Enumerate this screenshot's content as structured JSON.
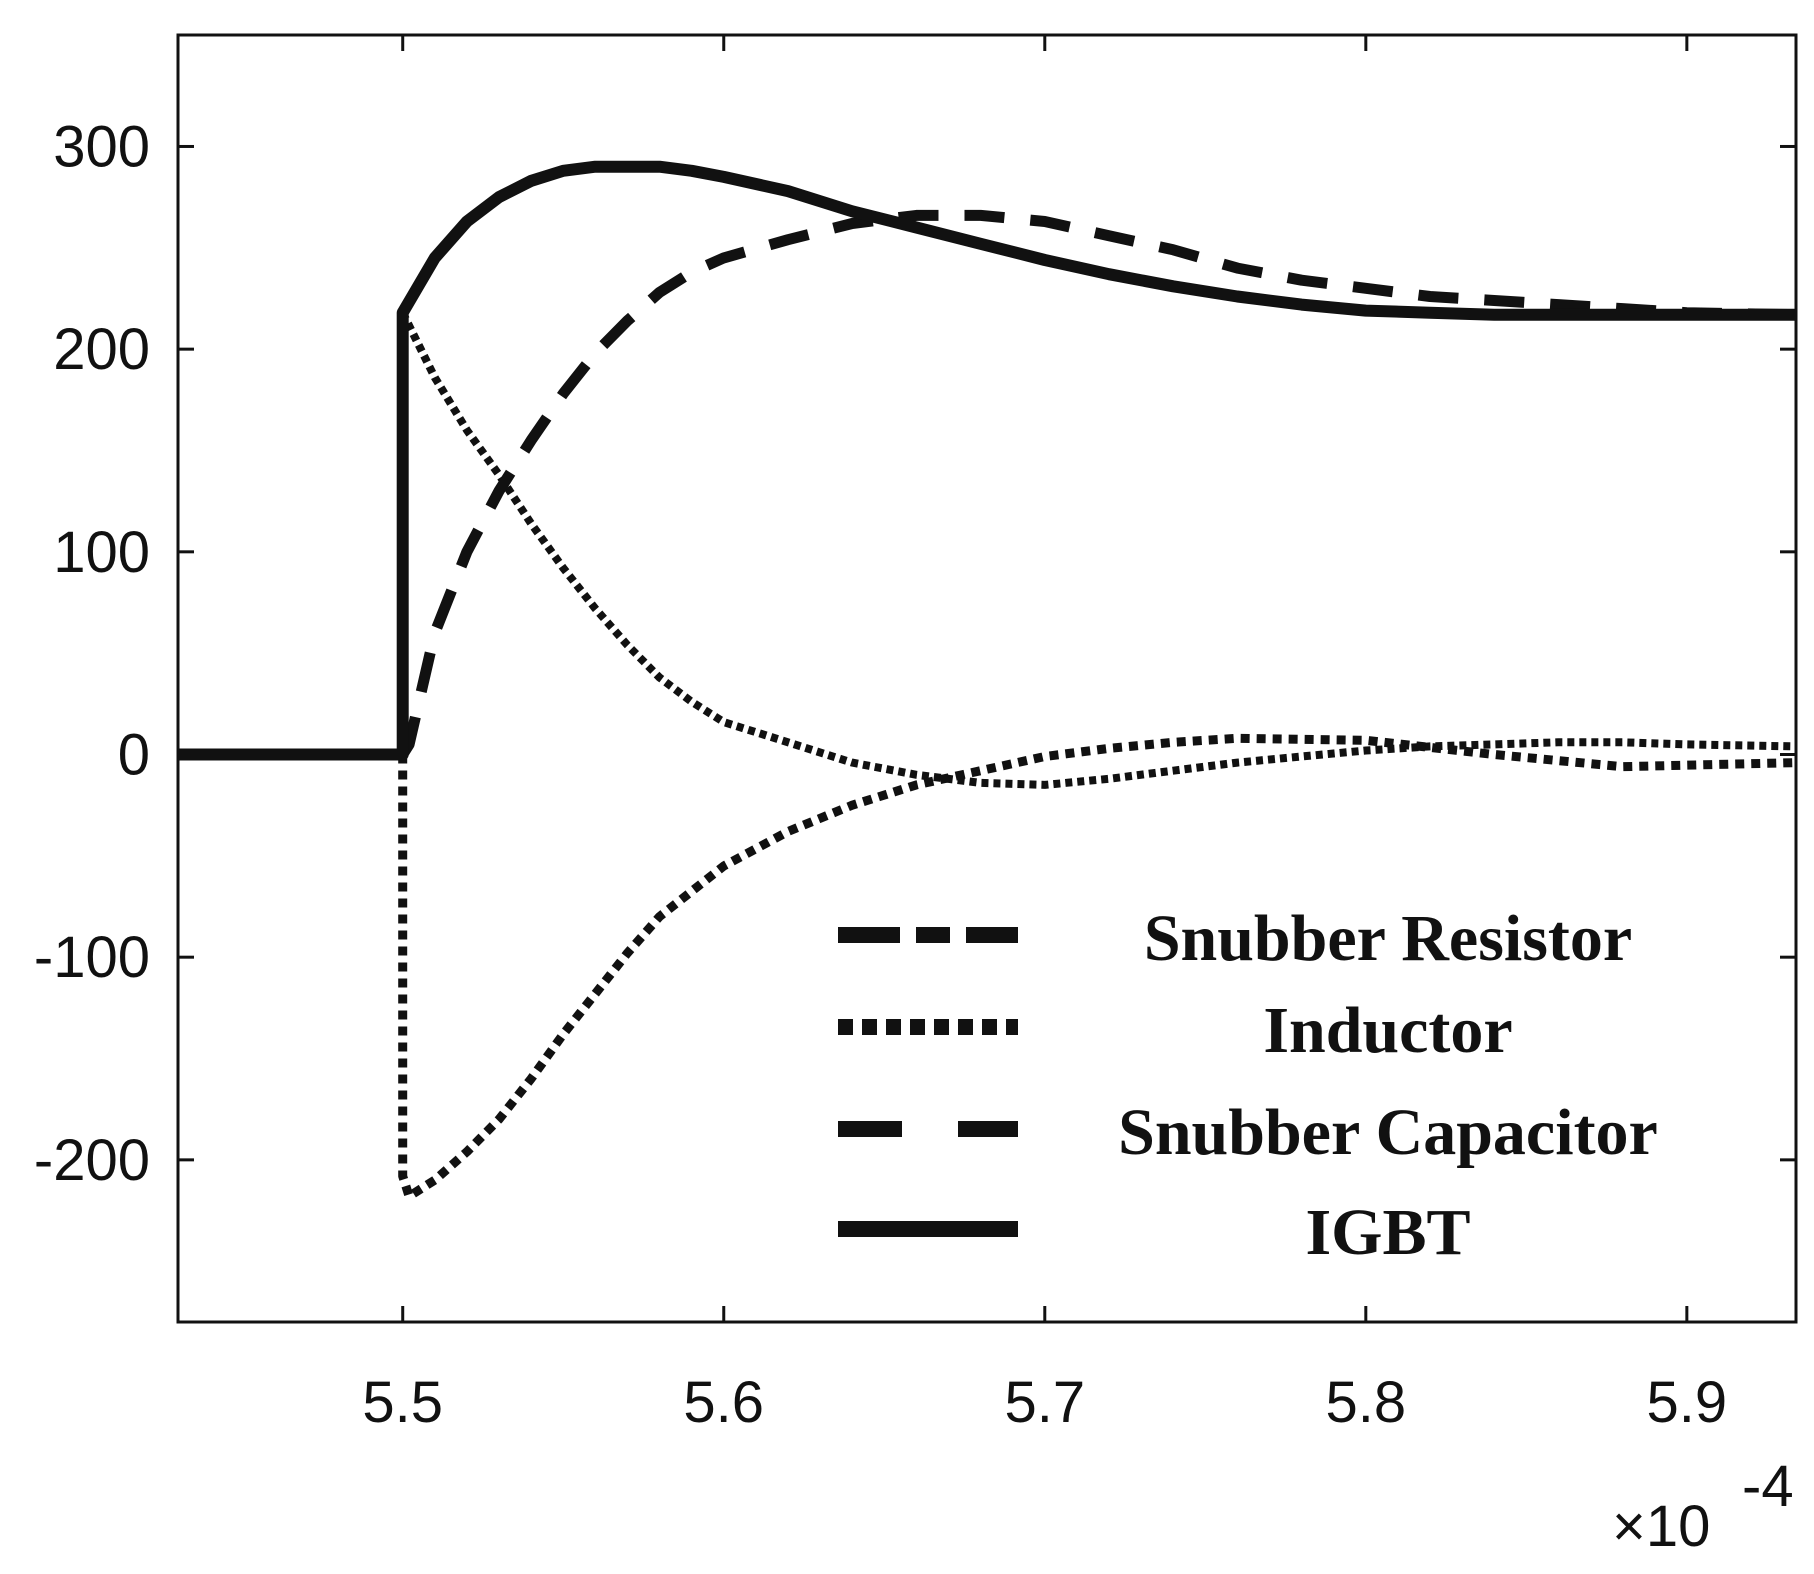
{
  "chart_data": {
    "type": "line",
    "title": "",
    "xlabel": "",
    "ylabel": "",
    "x_multiplier_label": "×10",
    "x_multiplier_exponent": "-4",
    "xlim": [
      5.43,
      5.934
    ],
    "ylim": [
      -280,
      355
    ],
    "xticks": [
      5.5,
      5.6,
      5.7,
      5.8,
      5.9
    ],
    "xtick_labels": [
      "5.5",
      "5.6",
      "5.7",
      "5.8",
      "5.9"
    ],
    "yticks": [
      300,
      200,
      100,
      0,
      -100,
      -200
    ],
    "ytick_labels": [
      "300",
      "200",
      "100",
      "0",
      "-100",
      "-200"
    ],
    "grid": false,
    "legend_position": "lower-right",
    "series": [
      {
        "name": "Snubber Resistor",
        "style": "dash-dot",
        "x": [
          5.5,
          5.51,
          5.52,
          5.53,
          5.54,
          5.55,
          5.56,
          5.57,
          5.58,
          5.59,
          5.6,
          5.62,
          5.64,
          5.66,
          5.68,
          5.7,
          5.72,
          5.74,
          5.76,
          5.78,
          5.8,
          5.82,
          5.84,
          5.86,
          5.88,
          5.9,
          5.934
        ],
        "values": [
          218,
          186,
          160,
          138,
          114,
          92,
          72,
          54,
          38,
          26,
          16,
          6,
          -4,
          -10,
          -14,
          -15,
          -12,
          -8,
          -4,
          -1,
          2,
          4,
          5,
          6,
          6,
          5,
          4
        ]
      },
      {
        "name": "Inductor",
        "style": "dotted",
        "x": [
          5.5,
          5.5,
          5.502,
          5.51,
          5.52,
          5.53,
          5.54,
          5.55,
          5.56,
          5.57,
          5.58,
          5.6,
          5.62,
          5.64,
          5.66,
          5.68,
          5.7,
          5.72,
          5.74,
          5.76,
          5.8,
          5.84,
          5.88,
          5.934
        ],
        "values": [
          0,
          -208,
          -218,
          -210,
          -196,
          -180,
          -160,
          -138,
          -118,
          -98,
          -80,
          -55,
          -38,
          -25,
          -15,
          -8,
          -1,
          3,
          6,
          8,
          7,
          0,
          -6,
          -4
        ]
      },
      {
        "name": "Snubber Capacitor",
        "style": "dashed",
        "x": [
          5.5,
          5.502,
          5.51,
          5.52,
          5.53,
          5.54,
          5.55,
          5.56,
          5.57,
          5.58,
          5.59,
          5.6,
          5.62,
          5.64,
          5.66,
          5.68,
          5.7,
          5.72,
          5.74,
          5.76,
          5.78,
          5.8,
          5.82,
          5.84,
          5.86,
          5.88,
          5.9,
          5.934
        ],
        "values": [
          0,
          5,
          60,
          100,
          130,
          155,
          178,
          198,
          214,
          228,
          238,
          245,
          254,
          262,
          266,
          266,
          263,
          256,
          249,
          240,
          234,
          230,
          226,
          224,
          222,
          220,
          218,
          217
        ]
      },
      {
        "name": "IGBT",
        "style": "solid",
        "x": [
          5.43,
          5.45,
          5.47,
          5.49,
          5.5,
          5.5,
          5.51,
          5.52,
          5.53,
          5.54,
          5.55,
          5.56,
          5.57,
          5.58,
          5.59,
          5.6,
          5.62,
          5.64,
          5.66,
          5.68,
          5.7,
          5.72,
          5.74,
          5.76,
          5.78,
          5.8,
          5.82,
          5.84,
          5.86,
          5.88,
          5.9,
          5.934
        ],
        "values": [
          0,
          0,
          0,
          0,
          0,
          218,
          245,
          263,
          275,
          283,
          288,
          290,
          290,
          290,
          288,
          285,
          278,
          268,
          260,
          252,
          244,
          237,
          231,
          226,
          222,
          219,
          218,
          217,
          217,
          217,
          217,
          217
        ]
      }
    ]
  }
}
